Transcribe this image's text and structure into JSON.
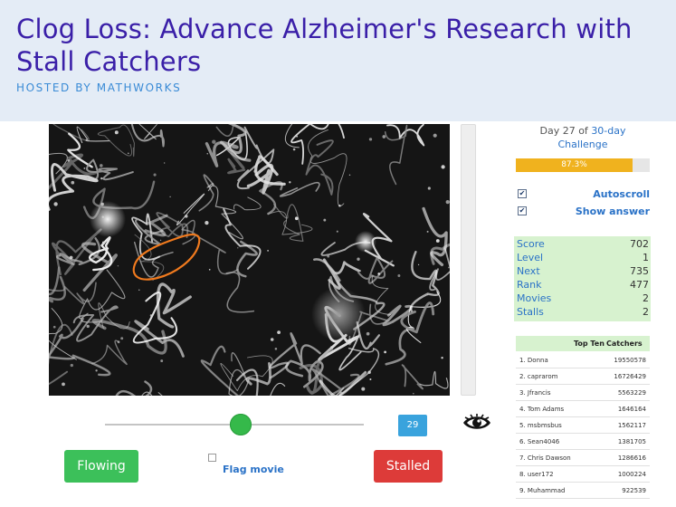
{
  "header": {
    "title": "Clog Loss: Advance Alzheimer's Research with Stall Catchers",
    "subtitle": "HOSTED BY MATHWORKS"
  },
  "player": {
    "frame_number": "29",
    "slider_position": 0.52,
    "eye_icon": "eye-icon",
    "flowing_label": "Flowing",
    "stalled_label": "Stalled",
    "flag_label": "Flag movie"
  },
  "challenge": {
    "day_prefix": "Day 27 of",
    "day_link": "30-day",
    "day_suffix": "Challenge",
    "progress_label": "87.3%",
    "progress_value": 0.873
  },
  "options": {
    "autoscroll_label": "Autoscroll",
    "show_answer_label": "Show answer",
    "check_mark": "✔"
  },
  "stats": [
    {
      "label": "Score",
      "value": "702"
    },
    {
      "label": "Level",
      "value": "1"
    },
    {
      "label": "Next",
      "value": "735"
    },
    {
      "label": "Rank",
      "value": "477"
    },
    {
      "label": "Movies",
      "value": "2"
    },
    {
      "label": "Stalls",
      "value": "2"
    }
  ],
  "leaderboard": {
    "header_left": "Top Ten",
    "header_right": "Catchers",
    "rows": [
      {
        "name": "1. Donna",
        "score": "19550578"
      },
      {
        "name": "2. caprarom",
        "score": "16726429"
      },
      {
        "name": "3. Jfrancis",
        "score": "5563229"
      },
      {
        "name": "4. Tom Adams",
        "score": "1646164"
      },
      {
        "name": "5. msbmsbus",
        "score": "1562117"
      },
      {
        "name": "6. Sean4046",
        "score": "1381705"
      },
      {
        "name": "7. Chris Dawson",
        "score": "1286616"
      },
      {
        "name": "8. user172",
        "score": "1000224"
      },
      {
        "name": "9. Muhammad",
        "score": "922539"
      }
    ]
  },
  "colors": {
    "title": "#3a1fa8",
    "subtitle": "#3a8bd6",
    "flowing": "#3cc05a",
    "stalled": "#dd3b39",
    "progress": "#f0b21e",
    "stats_bg": "#d7f2cf",
    "vessel_outline": "#f07a1e"
  }
}
